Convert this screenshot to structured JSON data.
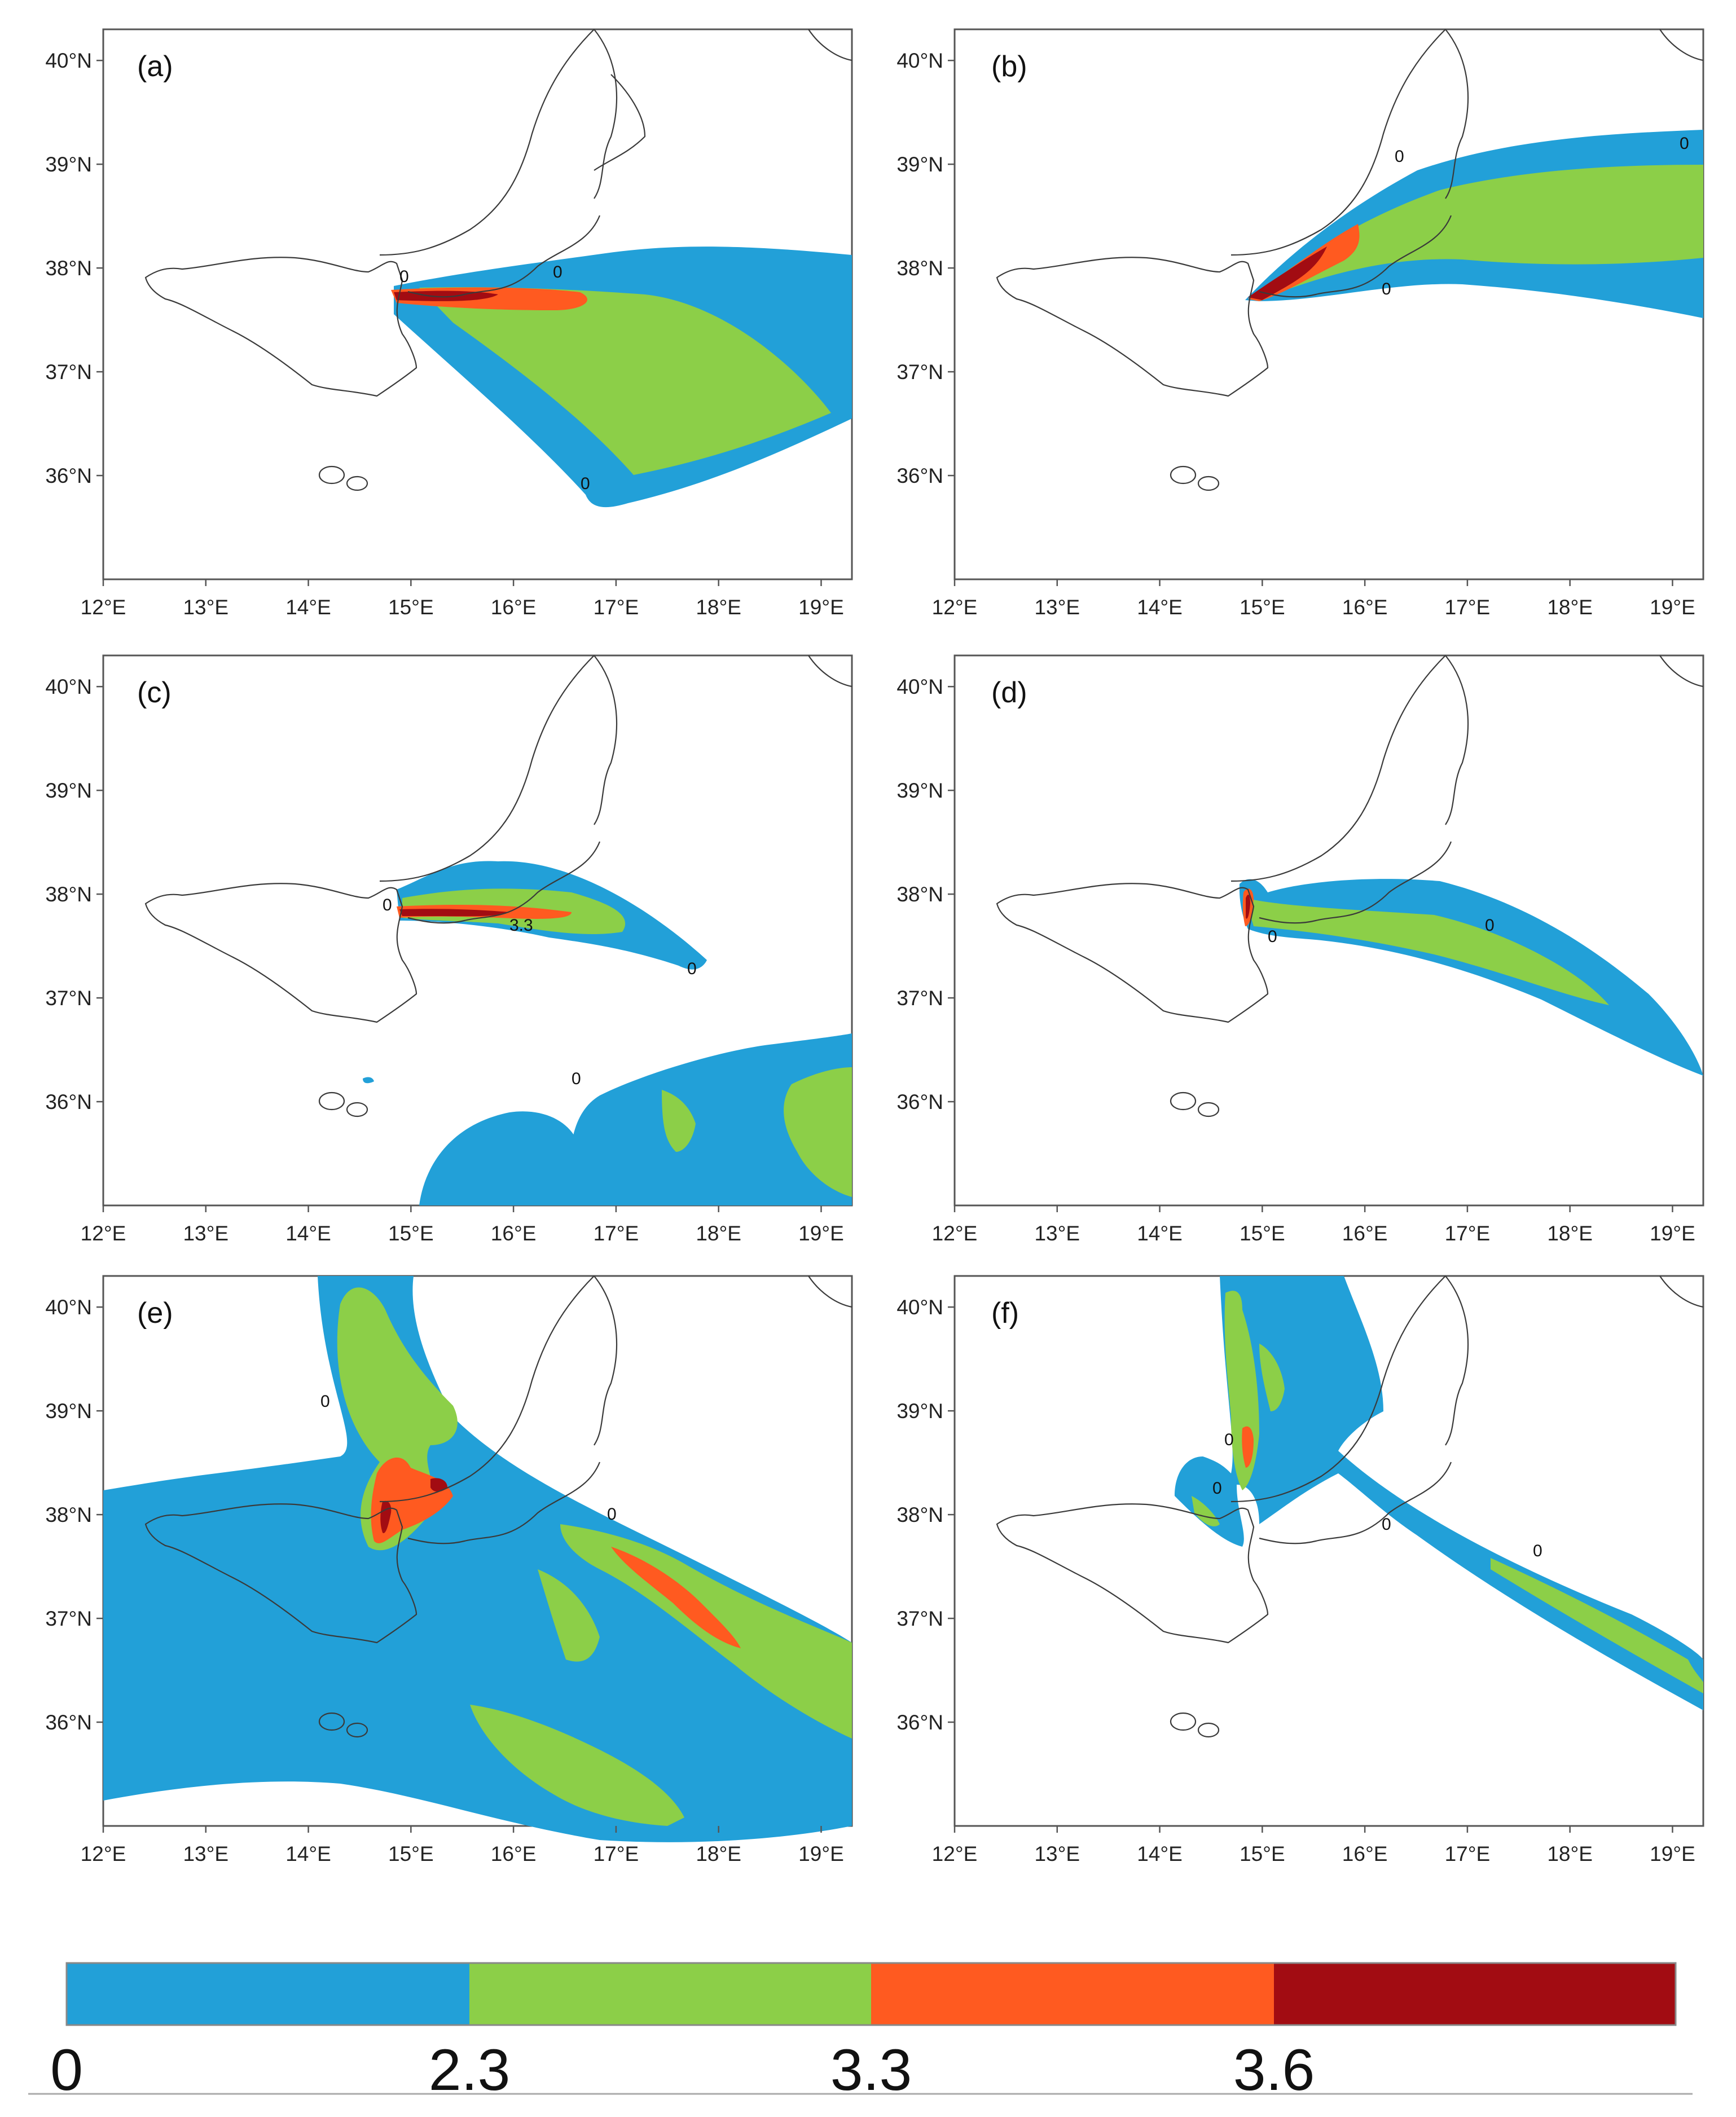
{
  "colors": {
    "level1": "#22a0d8",
    "level2": "#8ccf48",
    "level3": "#ff5a20",
    "level4": "#a20c12",
    "coastline": "#3a3a3a"
  },
  "map": {
    "lon_ticks": [
      "12°E",
      "13°E",
      "14°E",
      "15°E",
      "16°E",
      "17°E",
      "18°E",
      "19°E"
    ],
    "lat_ticks": [
      "40°N",
      "39°N",
      "38°N",
      "37°N",
      "36°N"
    ],
    "lon_range": [
      12,
      19.3
    ],
    "lat_range": [
      35,
      40.3
    ]
  },
  "panels": [
    {
      "letter": "(a)",
      "contour_labels": [
        "0",
        "0",
        "0"
      ]
    },
    {
      "letter": "(b)",
      "contour_labels": [
        "0",
        "0",
        "0"
      ]
    },
    {
      "letter": "(c)",
      "contour_labels": [
        "3.3",
        "0",
        "0",
        "0"
      ]
    },
    {
      "letter": "(d)",
      "contour_labels": [
        "0",
        "0"
      ]
    },
    {
      "letter": "(e)",
      "contour_labels": [
        "0",
        "0"
      ]
    },
    {
      "letter": "(f)",
      "contour_labels": [
        "0",
        "0",
        "0",
        "0"
      ]
    }
  ],
  "colorbar": {
    "labels": [
      "0",
      "2.3",
      "3.3",
      "3.6"
    ]
  }
}
